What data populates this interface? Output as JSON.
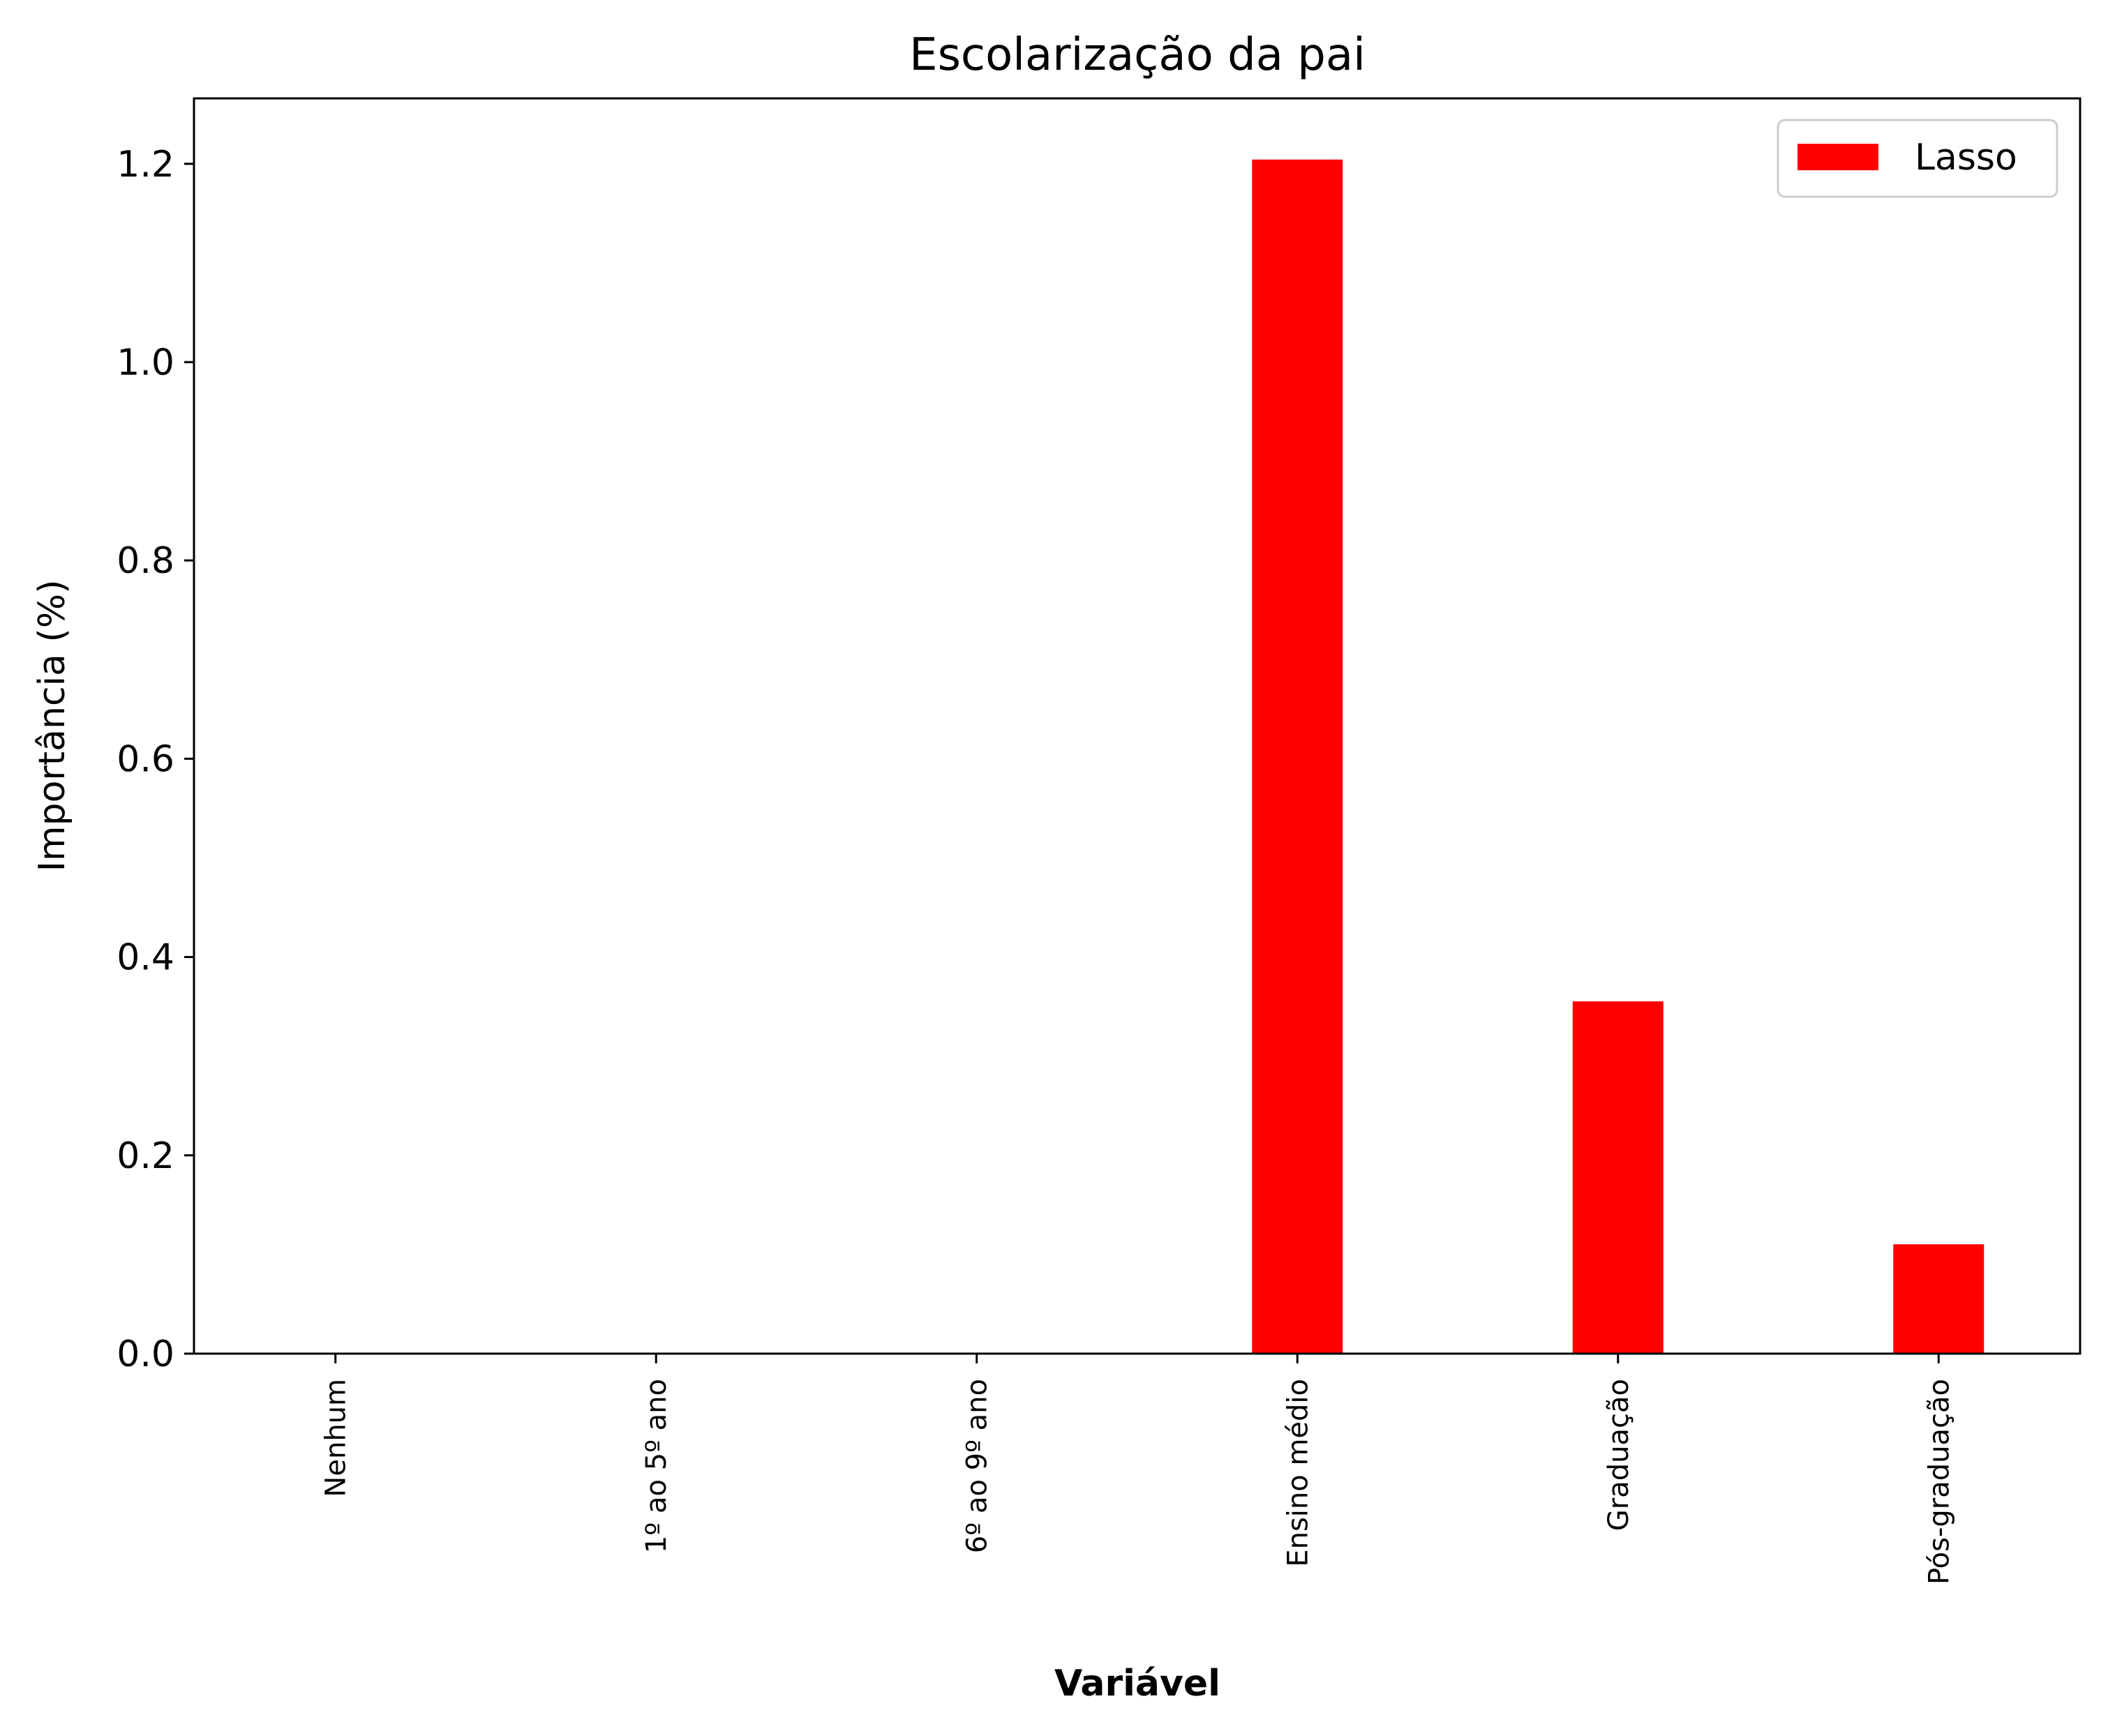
{
  "chart_data": {
    "type": "bar",
    "title": "Escolarização da pai",
    "xlabel": "Variável",
    "ylabel": "Importância (%)",
    "categories": [
      "Nenhum",
      "1º ao 5º ano",
      "6º ao 9º ano",
      "Ensino médio",
      "Graduação",
      "Pós-graduação"
    ],
    "series": [
      {
        "name": "Lasso",
        "color": "#ff0000",
        "values": [
          0.0,
          0.0,
          0.0,
          1.205,
          0.356,
          0.111
        ]
      }
    ],
    "ylim": [
      0,
      1.266
    ],
    "yticks": [
      "0.0",
      "0.2",
      "0.4",
      "0.6",
      "0.8",
      "1.0",
      "1.2"
    ],
    "ytick_values": [
      0.0,
      0.2,
      0.4,
      0.6,
      0.8,
      1.0,
      1.2
    ],
    "grid": false,
    "legend_position": "top-right"
  }
}
